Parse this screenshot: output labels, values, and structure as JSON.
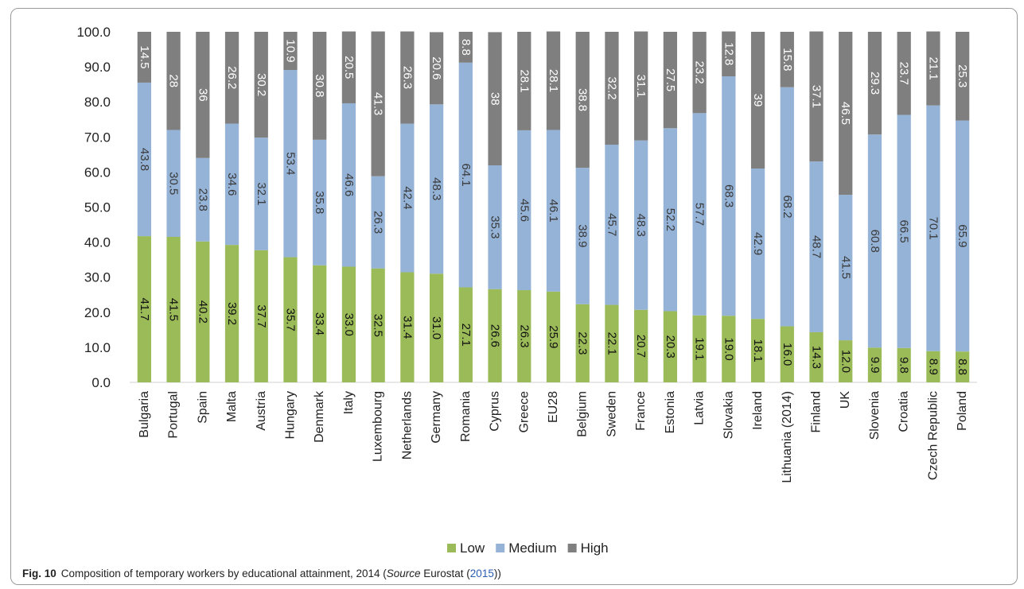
{
  "chart_data": {
    "type": "bar",
    "stacked": true,
    "title": "",
    "xlabel": "",
    "ylabel": "",
    "ylim": [
      0,
      100
    ],
    "y_ticks": [
      "0.0",
      "10.0",
      "20.0",
      "30.0",
      "40.0",
      "50.0",
      "60.0",
      "70.0",
      "80.0",
      "90.0",
      "100.0"
    ],
    "grid": false,
    "legend": "bottom",
    "categories": [
      "Bulgaria",
      "Portugal",
      "Spain",
      "Malta",
      "Austria",
      "Hungary",
      "Denmark",
      "Italy",
      "Luxembourg",
      "Netherlands",
      "Germany",
      "Romania",
      "Cyprus",
      "Greece",
      "EU28",
      "Belgium",
      "Sweden",
      "France",
      "Estonia",
      "Latvia",
      "Slovakia",
      "Ireland",
      "Lithuania (2014)",
      "Finland",
      "UK",
      "Slovenia",
      "Croatia",
      "Czech Republic",
      "Poland"
    ],
    "series": [
      {
        "name": "Low",
        "color": "#9bbb59",
        "values": [
          41.7,
          41.5,
          40.2,
          39.2,
          37.7,
          35.7,
          33.4,
          33.0,
          32.5,
          31.4,
          31.0,
          27.1,
          26.6,
          26.3,
          25.9,
          22.3,
          22.1,
          20.7,
          20.3,
          19.1,
          19.0,
          18.1,
          16.0,
          14.3,
          12.0,
          9.9,
          9.8,
          8.9,
          8.8
        ],
        "labels": [
          "41.7",
          "41.5",
          "40.2",
          "39.2",
          "37.7",
          "35.7",
          "33.4",
          "33.0",
          "32.5",
          "31.4",
          "31.0",
          "27.1",
          "26.6",
          "26.3",
          "25.9",
          "22.3",
          "22.1",
          "20.7",
          "20.3",
          "19.1",
          "19.0",
          "18.1",
          "16.0",
          "14.3",
          "12.0",
          "9.9",
          "9.8",
          "8.9",
          "8.8"
        ]
      },
      {
        "name": "Medium",
        "color": "#95b3d7",
        "values": [
          43.8,
          30.5,
          23.8,
          34.6,
          32.1,
          53.4,
          35.8,
          46.6,
          26.3,
          42.4,
          48.3,
          64.1,
          35.3,
          45.6,
          46.1,
          38.9,
          45.7,
          48.3,
          52.2,
          57.7,
          68.3,
          42.9,
          68.2,
          48.7,
          41.5,
          60.8,
          66.5,
          70.1,
          65.9
        ],
        "labels": [
          "43.8",
          "30.5",
          "23.8",
          "34.6",
          "32.1",
          "53.4",
          "35.8",
          "46.6",
          "26.3",
          "42.4",
          "48.3",
          "64.1",
          "35.3",
          "45.6",
          "46.1",
          "38.9",
          "45.7",
          "48.3",
          "52.2",
          "57.7",
          "68.3",
          "42.9",
          "68.2",
          "48.7",
          "41.5",
          "60.8",
          "66.5",
          "70.1",
          "65.9"
        ]
      },
      {
        "name": "High",
        "color": "#7f7f7f",
        "values": [
          14.5,
          28,
          36,
          26.2,
          30.2,
          10.9,
          30.8,
          20.5,
          41.3,
          26.3,
          20.6,
          8.8,
          38,
          28.1,
          28.1,
          38.8,
          32.2,
          31.1,
          27.5,
          23.2,
          12.8,
          39,
          15.8,
          37.1,
          46.5,
          29.3,
          23.7,
          21.1,
          25.3
        ],
        "labels": [
          "14.5",
          "28",
          "36",
          "26.2",
          "30.2",
          "10.9",
          "30.8",
          "20.5",
          "41.3",
          "26.3",
          "20.6",
          "8.8",
          "38",
          "28.1",
          "28.1",
          "38.8",
          "32.2",
          "31.1",
          "27.5",
          "23.2",
          "12.8",
          "39",
          "15.8",
          "37.1",
          "46.5",
          "29.3",
          "23.7",
          "21.1",
          "25.3"
        ]
      }
    ]
  },
  "caption": {
    "fig_label": "Fig. 10",
    "text_before_source": "Composition of temporary workers by educational attainment, 2014 (",
    "source_word": "Source",
    "source_name": " Eurostat (",
    "source_year": "2015",
    "text_after": "))"
  }
}
